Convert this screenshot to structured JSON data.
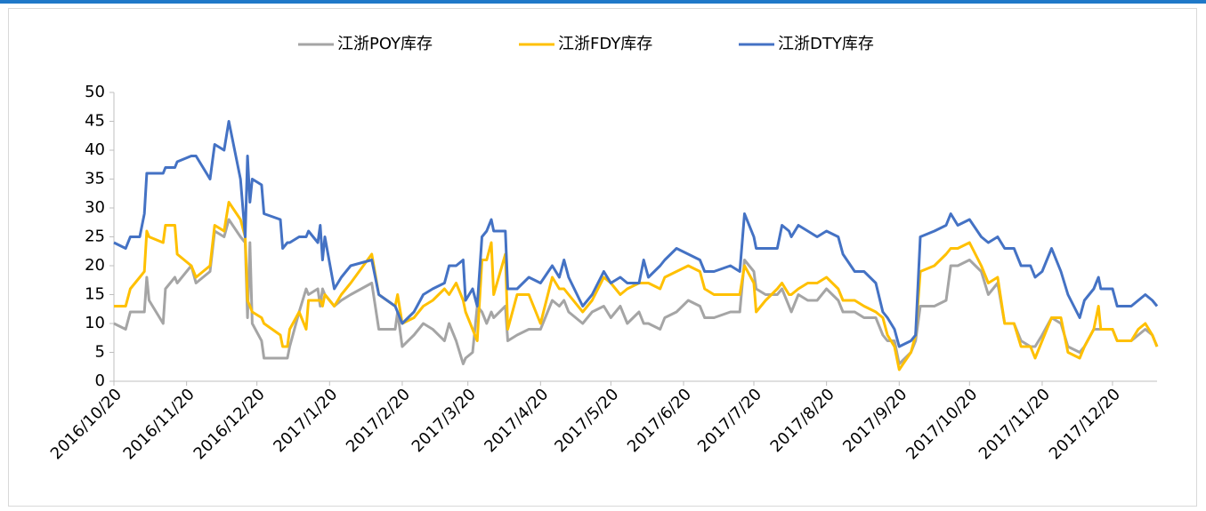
{
  "chart_data": {
    "type": "line",
    "x": [
      "2016/10/20",
      "2016/10/25",
      "2016/10/27",
      "2016/10/31",
      "2016/11/2",
      "2016/11/3",
      "2016/11/4",
      "2016/11/10",
      "2016/11/11",
      "2016/11/15",
      "2016/11/16",
      "2016/11/22",
      "2016/11/24",
      "2016/11/30",
      "2016/12/2",
      "2016/12/6",
      "2016/12/8",
      "2016/12/13",
      "2016/12/15",
      "2016/12/16",
      "2016/12/17",
      "2016/12/18",
      "2016/12/22",
      "2016/12/23",
      "2016/12/30",
      "2016/12/31",
      "2017/1/2",
      "2017/1/3",
      "2017/1/7",
      "2017/1/10",
      "2017/1/11",
      "2017/1/15",
      "2017/1/16",
      "2017/1/17",
      "2017/1/18",
      "2017/1/22",
      "2017/1/25",
      "2017/1/29",
      "2017/2/7",
      "2017/2/10",
      "2017/2/17",
      "2017/2/18",
      "2017/2/20",
      "2017/2/25",
      "2017/3/1",
      "2017/3/5",
      "2017/3/10",
      "2017/3/12",
      "2017/3/15",
      "2017/3/18",
      "2017/3/19",
      "2017/3/22",
      "2017/3/24",
      "2017/3/26",
      "2017/3/28",
      "2017/3/30",
      "2017/3/31",
      "2017/4/5",
      "2017/4/6",
      "2017/4/10",
      "2017/4/15",
      "2017/4/20",
      "2017/4/25",
      "2017/4/28",
      "2017/4/30",
      "2017/5/2",
      "2017/5/8",
      "2017/5/12",
      "2017/5/17",
      "2017/5/20",
      "2017/5/24",
      "2017/5/27",
      "2017/6/1",
      "2017/6/3",
      "2017/6/5",
      "2017/6/10",
      "2017/6/12",
      "2017/6/17",
      "2017/6/22",
      "2017/6/27",
      "2017/6/29",
      "2017/7/3",
      "2017/7/10",
      "2017/7/14",
      "2017/7/16",
      "2017/7/20",
      "2017/7/21",
      "2017/7/25",
      "2017/7/30",
      "2017/8/1",
      "2017/8/4",
      "2017/8/5",
      "2017/8/8",
      "2017/8/12",
      "2017/8/16",
      "2017/8/20",
      "2017/8/25",
      "2017/8/27",
      "2017/9/1",
      "2017/9/5",
      "2017/9/10",
      "2017/9/13",
      "2017/9/15",
      "2017/9/18",
      "2017/9/20",
      "2017/9/25",
      "2017/9/27",
      "2017/9/29",
      "2017/10/5",
      "2017/10/10",
      "2017/10/12",
      "2017/10/15",
      "2017/10/20",
      "2017/10/25",
      "2017/10/28",
      "2017/11/1",
      "2017/11/4",
      "2017/11/8",
      "2017/11/11",
      "2017/11/15",
      "2017/11/17",
      "2017/11/20",
      "2017/11/24",
      "2017/11/28",
      "2017/12/1",
      "2017/12/6",
      "2017/12/8",
      "2017/12/12",
      "2017/12/14",
      "2017/12/15",
      "2017/12/20",
      "2017/12/22",
      "2017/12/28",
      "2017/12/31",
      "2018/1/3",
      "2018/1/6",
      "2018/1/8"
    ],
    "series": [
      {
        "name": "江浙POY库存",
        "color": "#a5a5a5",
        "values": [
          10,
          9,
          12,
          12,
          12,
          18,
          14,
          10,
          16,
          18,
          17,
          20,
          17,
          19,
          26,
          25,
          28,
          25,
          24,
          11,
          24,
          10,
          7,
          4,
          4,
          4,
          4,
          6,
          12,
          16,
          15,
          16,
          13,
          16,
          15,
          13,
          14,
          15,
          17,
          9,
          9,
          12,
          6,
          8,
          10,
          9,
          7,
          10,
          7,
          3,
          4,
          5,
          13,
          12,
          10,
          12,
          11,
          13,
          7,
          8,
          9,
          9,
          14,
          13,
          14,
          12,
          10,
          12,
          13,
          11,
          13,
          10,
          12,
          10,
          10,
          9,
          11,
          12,
          14,
          13,
          11,
          11,
          12,
          12,
          21,
          19,
          16,
          15,
          15,
          16,
          13,
          12,
          15,
          14,
          14,
          16,
          14,
          12,
          12,
          11,
          11,
          8,
          7,
          7,
          3,
          5,
          7,
          13,
          13,
          14,
          20,
          20,
          21,
          19,
          15,
          17,
          10,
          10,
          7,
          6,
          6,
          8,
          11,
          10,
          6,
          5,
          6,
          9,
          9,
          9,
          9,
          7,
          7,
          8,
          9,
          8,
          6
        ]
      },
      {
        "name": "江浙FDY库存",
        "color": "#ffc000",
        "values": [
          13,
          13,
          16,
          18,
          19,
          26,
          25,
          24,
          27,
          27,
          22,
          20,
          18,
          20,
          27,
          26,
          31,
          28,
          25,
          14,
          13,
          12,
          11,
          10,
          8,
          6,
          6,
          9,
          12,
          9,
          14,
          14,
          14,
          13,
          15,
          13,
          15,
          17,
          22,
          15,
          13,
          15,
          10,
          11,
          13,
          14,
          16,
          15,
          17,
          14,
          12,
          9,
          7,
          21,
          21,
          24,
          15,
          22,
          9,
          15,
          15,
          10,
          18,
          16,
          16,
          15,
          12,
          14,
          18,
          17,
          15,
          16,
          17,
          17,
          17,
          16,
          18,
          19,
          20,
          19,
          16,
          15,
          15,
          15,
          20,
          17,
          12,
          14,
          16,
          17,
          15,
          15,
          16,
          17,
          17,
          18,
          16,
          14,
          14,
          13,
          12,
          11,
          8,
          6,
          2,
          5,
          8,
          19,
          20,
          22,
          23,
          23,
          24,
          20,
          17,
          18,
          10,
          10,
          6,
          6,
          4,
          7,
          11,
          11,
          5,
          4,
          6,
          9,
          13,
          9,
          9,
          7,
          7,
          9,
          10,
          8,
          6
        ]
      },
      {
        "name": "江浙DTY库存",
        "color": "#4472c4",
        "values": [
          24,
          23,
          25,
          25,
          29,
          36,
          36,
          36,
          37,
          37,
          38,
          39,
          39,
          35,
          41,
          40,
          45,
          35,
          25,
          39,
          31,
          35,
          34,
          29,
          28,
          23,
          24,
          24,
          25,
          25,
          26,
          24,
          27,
          21,
          25,
          16,
          18,
          20,
          21,
          15,
          13,
          12,
          10,
          12,
          15,
          16,
          17,
          20,
          20,
          21,
          14,
          16,
          13,
          25,
          26,
          28,
          26,
          26,
          16,
          16,
          18,
          17,
          20,
          18,
          21,
          18,
          13,
          15,
          19,
          17,
          18,
          17,
          17,
          21,
          18,
          20,
          21,
          23,
          22,
          21,
          19,
          19,
          20,
          19,
          29,
          25,
          23,
          23,
          23,
          27,
          26,
          25,
          27,
          26,
          25,
          26,
          25,
          22,
          19,
          19,
          17,
          12,
          11,
          9,
          6,
          7,
          8,
          25,
          26,
          27,
          29,
          27,
          28,
          25,
          24,
          25,
          23,
          23,
          20,
          20,
          18,
          19,
          23,
          19,
          15,
          11,
          14,
          16,
          18,
          16,
          16,
          13,
          13,
          14,
          15,
          14,
          13
        ]
      }
    ],
    "xlim": [
      "2016/10/20",
      "2018/1/8"
    ],
    "xticks": [
      "2016/10/20",
      "2016/11/20",
      "2016/12/20",
      "2017/1/20",
      "2017/2/20",
      "2017/3/20",
      "2017/4/20",
      "2017/5/20",
      "2017/6/20",
      "2017/7/20",
      "2017/8/20",
      "2017/9/20",
      "2017/10/20",
      "2017/11/20",
      "2017/12/20"
    ],
    "ylim": [
      0,
      50
    ],
    "yticks": [
      0,
      5,
      10,
      15,
      20,
      25,
      30,
      35,
      40,
      45,
      50
    ],
    "grid": false,
    "legend": "top"
  }
}
